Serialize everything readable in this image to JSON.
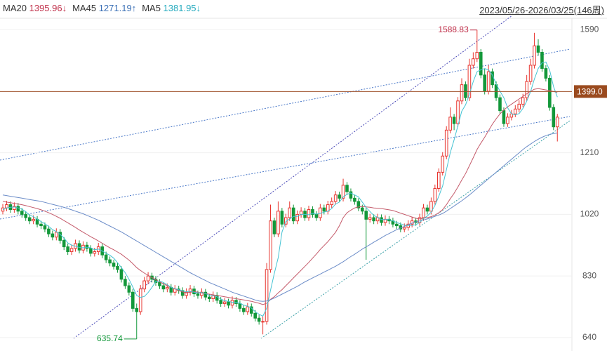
{
  "chart_data": {
    "type": "candlestick",
    "period": "2023/05/26-2026/03/25(146周)",
    "up_color": "#e8352f",
    "down_color": "#13983a",
    "ylim": [
      616,
      1625
    ],
    "yticks": [
      640,
      830,
      1020,
      1210,
      1590
    ],
    "grid": true,
    "price_line": {
      "value": 1399,
      "label": "1399.0"
    },
    "high_label": 1588.83,
    "low_label": 635.74,
    "candles": [
      [
        1030,
        1052,
        1020,
        1040
      ],
      [
        1040,
        1062,
        1030,
        1050
      ],
      [
        1050,
        1060,
        1025,
        1035
      ],
      [
        1035,
        1057,
        1025,
        1045
      ],
      [
        1045,
        1055,
        1020,
        1030
      ],
      [
        1030,
        1040,
        1010,
        1020
      ],
      [
        1020,
        1030,
        1000,
        1010
      ],
      [
        1010,
        1020,
        990,
        1000
      ],
      [
        1000,
        1017,
        990,
        1005
      ],
      [
        1005,
        1015,
        980,
        990
      ],
      [
        990,
        1000,
        975,
        985
      ],
      [
        985,
        995,
        965,
        975
      ],
      [
        975,
        985,
        950,
        960
      ],
      [
        960,
        970,
        940,
        950
      ],
      [
        950,
        977,
        940,
        965
      ],
      [
        965,
        975,
        930,
        940
      ],
      [
        940,
        950,
        910,
        920
      ],
      [
        920,
        930,
        895,
        905
      ],
      [
        905,
        927,
        895,
        915
      ],
      [
        915,
        942,
        905,
        930
      ],
      [
        930,
        940,
        900,
        910
      ],
      [
        910,
        937,
        900,
        925
      ],
      [
        925,
        935,
        905,
        915
      ],
      [
        915,
        925,
        890,
        900
      ],
      [
        900,
        917,
        890,
        905
      ],
      [
        905,
        932,
        895,
        920
      ],
      [
        920,
        930,
        885,
        895
      ],
      [
        895,
        905,
        870,
        880
      ],
      [
        880,
        890,
        860,
        870
      ],
      [
        870,
        880,
        850,
        860
      ],
      [
        860,
        870,
        840,
        850
      ],
      [
        850,
        860,
        810,
        820
      ],
      [
        820,
        830,
        790,
        800
      ],
      [
        800,
        810,
        770,
        780
      ],
      [
        780,
        790,
        720,
        730
      ],
      [
        730,
        745,
        635.74,
        720
      ],
      [
        720,
        802,
        710,
        790
      ],
      [
        790,
        827,
        780,
        815
      ],
      [
        815,
        842,
        805,
        830
      ],
      [
        830,
        840,
        810,
        820
      ],
      [
        820,
        830,
        800,
        810
      ],
      [
        810,
        820,
        790,
        800
      ],
      [
        800,
        810,
        780,
        790
      ],
      [
        790,
        807,
        780,
        795
      ],
      [
        795,
        805,
        770,
        780
      ],
      [
        780,
        802,
        770,
        790
      ],
      [
        790,
        800,
        775,
        785
      ],
      [
        785,
        795,
        760,
        770
      ],
      [
        770,
        792,
        760,
        780
      ],
      [
        780,
        802,
        770,
        790
      ],
      [
        790,
        800,
        765,
        775
      ],
      [
        775,
        785,
        760,
        770
      ],
      [
        770,
        792,
        760,
        780
      ],
      [
        780,
        790,
        755,
        765
      ],
      [
        765,
        775,
        750,
        760
      ],
      [
        760,
        782,
        750,
        770
      ],
      [
        770,
        780,
        745,
        755
      ],
      [
        755,
        765,
        735,
        745
      ],
      [
        745,
        762,
        735,
        750
      ],
      [
        750,
        760,
        730,
        740
      ],
      [
        740,
        767,
        730,
        755
      ],
      [
        755,
        765,
        735,
        745
      ],
      [
        745,
        755,
        720,
        730
      ],
      [
        730,
        740,
        710,
        720
      ],
      [
        720,
        747,
        710,
        735
      ],
      [
        735,
        745,
        705,
        715
      ],
      [
        715,
        725,
        690,
        700
      ],
      [
        700,
        710,
        680,
        690
      ],
      [
        690,
        705,
        650,
        690
      ],
      [
        690,
        870,
        680,
        850
      ],
      [
        850,
        1050,
        840,
        1000
      ],
      [
        1000,
        1010,
        950,
        960
      ],
      [
        960,
        1060,
        950,
        1030
      ],
      [
        1030,
        1040,
        980,
        990
      ],
      [
        990,
        1022,
        980,
        1010
      ],
      [
        1010,
        1060,
        1000,
        1040
      ],
      [
        1040,
        1050,
        990,
        1000
      ],
      [
        1000,
        1032,
        990,
        1020
      ],
      [
        1020,
        1042,
        1010,
        1030
      ],
      [
        1030,
        1040,
        1000,
        1010
      ],
      [
        1010,
        1047,
        1000,
        1035
      ],
      [
        1035,
        1045,
        1010,
        1020
      ],
      [
        1020,
        1030,
        1000,
        1010
      ],
      [
        1010,
        1052,
        1000,
        1040
      ],
      [
        1040,
        1050,
        1020,
        1030
      ],
      [
        1030,
        1062,
        1020,
        1050
      ],
      [
        1050,
        1072,
        1040,
        1060
      ],
      [
        1060,
        1092,
        1050,
        1080
      ],
      [
        1080,
        1090,
        1060,
        1070
      ],
      [
        1070,
        1130,
        1060,
        1110
      ],
      [
        1110,
        1120,
        1080,
        1090
      ],
      [
        1090,
        1100,
        1060,
        1070
      ],
      [
        1070,
        1080,
        1050,
        1060
      ],
      [
        1060,
        1070,
        1030,
        1040
      ],
      [
        1040,
        1050,
        1020,
        1030
      ],
      [
        1030,
        1040,
        880,
        1005
      ],
      [
        1005,
        1022,
        995,
        1010
      ],
      [
        1010,
        1020,
        990,
        1000
      ],
      [
        1000,
        1022,
        990,
        1010
      ],
      [
        1010,
        1020,
        985,
        995
      ],
      [
        995,
        1017,
        985,
        1005
      ],
      [
        1005,
        1015,
        990,
        1000
      ],
      [
        1000,
        1010,
        980,
        990
      ],
      [
        990,
        1000,
        975,
        985
      ],
      [
        985,
        995,
        965,
        975
      ],
      [
        975,
        992,
        965,
        980
      ],
      [
        980,
        1002,
        970,
        990
      ],
      [
        990,
        1012,
        980,
        1000
      ],
      [
        1000,
        1010,
        985,
        995
      ],
      [
        995,
        1022,
        985,
        1010
      ],
      [
        1010,
        1052,
        1000,
        1040
      ],
      [
        1040,
        1050,
        1020,
        1030
      ],
      [
        1030,
        1072,
        1020,
        1060
      ],
      [
        1060,
        1112,
        1050,
        1100
      ],
      [
        1100,
        1162,
        1090,
        1150
      ],
      [
        1150,
        1212,
        1140,
        1200
      ],
      [
        1200,
        1292,
        1190,
        1280
      ],
      [
        1280,
        1350,
        1270,
        1320
      ],
      [
        1320,
        1330,
        1280,
        1300
      ],
      [
        1300,
        1382,
        1290,
        1370
      ],
      [
        1370,
        1440,
        1360,
        1420
      ],
      [
        1420,
        1430,
        1370,
        1380
      ],
      [
        1380,
        1500,
        1370,
        1480
      ],
      [
        1480,
        1520,
        1470,
        1500
      ],
      [
        1500,
        1588.83,
        1490,
        1520
      ],
      [
        1520,
        1530,
        1440,
        1450
      ],
      [
        1450,
        1470,
        1390,
        1400
      ],
      [
        1400,
        1480,
        1390,
        1460
      ],
      [
        1460,
        1470,
        1410,
        1420
      ],
      [
        1420,
        1430,
        1370,
        1380
      ],
      [
        1380,
        1390,
        1330,
        1340
      ],
      [
        1340,
        1350,
        1290,
        1300
      ],
      [
        1300,
        1332,
        1290,
        1320
      ],
      [
        1320,
        1342,
        1310,
        1330
      ],
      [
        1330,
        1357,
        1320,
        1345
      ],
      [
        1345,
        1372,
        1335,
        1360
      ],
      [
        1360,
        1392,
        1350,
        1380
      ],
      [
        1380,
        1450,
        1370,
        1430
      ],
      [
        1430,
        1500,
        1420,
        1480
      ],
      [
        1480,
        1580,
        1470,
        1540
      ],
      [
        1540,
        1560,
        1510,
        1520
      ],
      [
        1520,
        1530,
        1460,
        1470
      ],
      [
        1470,
        1480,
        1430,
        1440
      ],
      [
        1440,
        1450,
        1340,
        1350
      ],
      [
        1350,
        1360,
        1280,
        1290
      ],
      [
        1290,
        1330,
        1245,
        1320
      ]
    ],
    "series": [
      {
        "name": "MA20",
        "color": "#c0304a",
        "line_color": "#c45a6a",
        "last_label": "1395.96↓",
        "values": [
          1060,
          1058,
          1056,
          1054,
          1052,
          1050,
          1047,
          1044,
          1041,
          1038,
          1034,
          1030,
          1025,
          1020,
          1014,
          1008,
          1001,
          994,
          987,
          980,
          972,
          965,
          958,
          951,
          945,
          938,
          931,
          924,
          917,
          911,
          904,
          897,
          888,
          879,
          868,
          856,
          847,
          839,
          832,
          825,
          819,
          812,
          806,
          800,
          795,
          790,
          785,
          781,
          778,
          780,
          782,
          780,
          778,
          776,
          774,
          772,
          770,
          768,
          766,
          764,
          762,
          760,
          758,
          756,
          754,
          752,
          749,
          746,
          742,
          746,
          758,
          766,
          778,
          788,
          800,
          812,
          824,
          836,
          848,
          860,
          872,
          885,
          898,
          912,
          924,
          936,
          950,
          965,
          985,
          1010,
          1025,
          1033,
          1040,
          1043,
          1044,
          1043,
          1042,
          1040,
          1039,
          1038,
          1036,
          1034,
          1032,
          1028,
          1024,
          1020,
          1016,
          1012,
          1008,
          1006,
          1008,
          1010,
          1013,
          1018,
          1025,
          1035,
          1050,
          1068,
          1085,
          1105,
          1126,
          1146,
          1170,
          1195,
          1220,
          1240,
          1258,
          1278,
          1298,
          1315,
          1330,
          1342,
          1352,
          1360,
          1368,
          1376,
          1384,
          1392,
          1400,
          1406,
          1408,
          1406,
          1404,
          1402,
          1399,
          1395.96
        ]
      },
      {
        "name": "MA45",
        "color": "#3a6fb5",
        "line_color": "#6b8cc8",
        "last_label": "1271.19↑",
        "values": [
          1080,
          1078,
          1076,
          1074,
          1072,
          1070,
          1068,
          1066,
          1064,
          1062,
          1060,
          1057,
          1054,
          1051,
          1048,
          1045,
          1042,
          1038,
          1034,
          1030,
          1026,
          1022,
          1017,
          1012,
          1007,
          1002,
          996,
          990,
          984,
          978,
          972,
          966,
          959,
          952,
          945,
          938,
          931,
          924,
          917,
          910,
          903,
          896,
          889,
          882,
          875,
          868,
          861,
          854,
          847,
          840,
          834,
          828,
          822,
          816,
          810,
          805,
          800,
          795,
          790,
          785,
          780,
          776,
          772,
          768,
          764,
          760,
          756,
          753,
          752,
          753,
          757,
          762,
          768,
          774,
          780,
          786,
          792,
          798,
          805,
          812,
          818,
          824,
          830,
          836,
          842,
          848,
          854,
          860,
          867,
          874,
          882,
          890,
          897,
          905,
          913,
          920,
          927,
          934,
          941,
          948,
          955,
          961,
          967,
          973,
          978,
          983,
          988,
          993,
          997,
          1000,
          1003,
          1006,
          1010,
          1014,
          1018,
          1023,
          1030,
          1038,
          1046,
          1054,
          1062,
          1071,
          1080,
          1090,
          1100,
          1110,
          1120,
          1130,
          1140,
          1150,
          1160,
          1170,
          1180,
          1190,
          1200,
          1210,
          1220,
          1229,
          1237,
          1245,
          1252,
          1258,
          1263,
          1267,
          1269,
          1271.19
        ]
      },
      {
        "name": "MA5",
        "color": "#22a9bd",
        "line_color": "#45c3d3",
        "last_label": "1381.95↓",
        "values": [
          1035,
          1040,
          1042,
          1043,
          1040,
          1036,
          1028,
          1018,
          1013,
          1005,
          998,
          991,
          983,
          973,
          967,
          958,
          947,
          932,
          925,
          922,
          918,
          917,
          919,
          917,
          911,
          913,
          907,
          900,
          894,
          885,
          871,
          856,
          840,
          820,
          796,
          770,
          764,
          767,
          779,
          795,
          813,
          815,
          810,
          803,
          795,
          791,
          788,
          784,
          781,
          783,
          780,
          778,
          779,
          776,
          770,
          769,
          766,
          759,
          754,
          752,
          749,
          749,
          746,
          740,
          737,
          731,
          720,
          712,
          706,
          731,
          786,
          838,
          886,
          966,
          998,
          1006,
          1014,
          1014,
          1020,
          1020,
          1019,
          1023,
          1021,
          1023,
          1027,
          1030,
          1038,
          1052,
          1058,
          1074,
          1082,
          1086,
          1080,
          1074,
          1058,
          1041,
          1029,
          1017,
          1011,
          1004,
          1004,
          1004,
          1000,
          995,
          991,
          987,
          986,
          986,
          988,
          995,
          1007,
          1015,
          1027,
          1048,
          1076,
          1108,
          1158,
          1210,
          1250,
          1294,
          1338,
          1358,
          1390,
          1430,
          1460,
          1466,
          1470,
          1466,
          1450,
          1422,
          1400,
          1380,
          1349,
          1330,
          1327,
          1331,
          1347,
          1369,
          1399,
          1438,
          1470,
          1488,
          1490,
          1464,
          1414,
          1381.95
        ]
      }
    ]
  }
}
